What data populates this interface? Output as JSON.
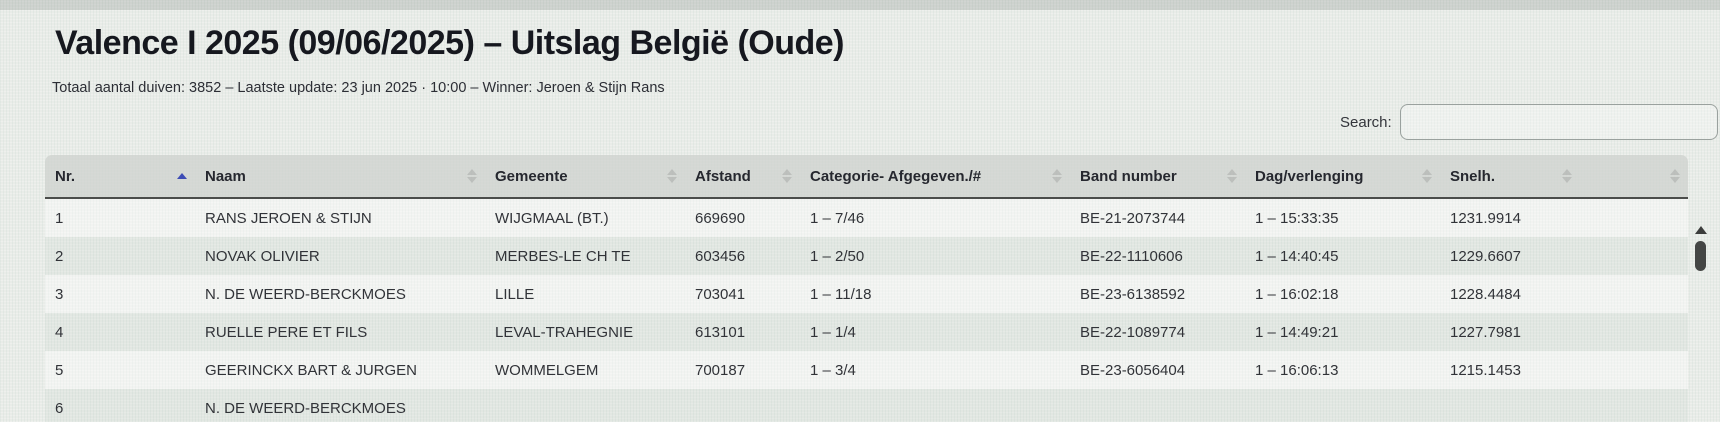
{
  "page": {
    "title": "Valence I 2025 (09/06/2025) – Uitslag België (Oude)",
    "subtitle": "Totaal aantal duiven: 3852 – Laatste update: 23 jun 2025 · 10:00 – Winner: Jeroen & Stijn Rans"
  },
  "search": {
    "label": "Search:",
    "value": "",
    "placeholder": ""
  },
  "table": {
    "columns": [
      {
        "label": "Nr.",
        "sort": "asc"
      },
      {
        "label": "Naam",
        "sort": "none"
      },
      {
        "label": "Gemeente",
        "sort": "none"
      },
      {
        "label": "Afstand",
        "sort": "none"
      },
      {
        "label": "Categorie- Afgegeven./#",
        "sort": "none"
      },
      {
        "label": "Band number",
        "sort": "none"
      },
      {
        "label": "Dag/verlenging",
        "sort": "none"
      },
      {
        "label": "Snelh.",
        "sort": "none"
      }
    ],
    "rows": [
      [
        "1",
        "RANS JEROEN & STIJN",
        "WIJGMAAL (BT.)",
        "669690",
        "1 – 7/46",
        "BE-21-2073744",
        "1 – 15:33:35",
        "1231.9914"
      ],
      [
        "2",
        "NOVAK OLIVIER",
        "MERBES-LE CH TE",
        "603456",
        "1 – 2/50",
        "BE-22-1110606",
        "1 – 14:40:45",
        "1229.6607"
      ],
      [
        "3",
        "N. DE WEERD-BERCKMOES",
        "LILLE",
        "703041",
        "1 – 11/18",
        "BE-23-6138592",
        "1 – 16:02:18",
        "1228.4484"
      ],
      [
        "4",
        "RUELLE PERE ET FILS",
        "LEVAL-TRAHEGNIE",
        "613101",
        "1 – 1/4",
        "BE-22-1089774",
        "1 – 14:49:21",
        "1227.7981"
      ],
      [
        "5",
        "GEERINCKX BART & JURGEN",
        "WOMMELGEM",
        "700187",
        "1 – 3/4",
        "BE-23-6056404",
        "1 – 16:06:13",
        "1215.1453"
      ],
      [
        "6",
        "N. DE WEERD-BERCKMOES",
        "",
        "",
        "",
        "",
        "",
        ""
      ]
    ]
  },
  "colors": {
    "page_bg": "#e9ece8",
    "header_bg": "#cdd2cd",
    "text": "#26272e",
    "sort_active": "#3d4cb5",
    "header_underline": "#4b4d4b",
    "scrollbar_thumb": "#454645"
  },
  "icons": {
    "sort_active": "sort-asc-icon",
    "sort_idle": "sort-icon",
    "scroll_up": "scroll-up-icon"
  }
}
